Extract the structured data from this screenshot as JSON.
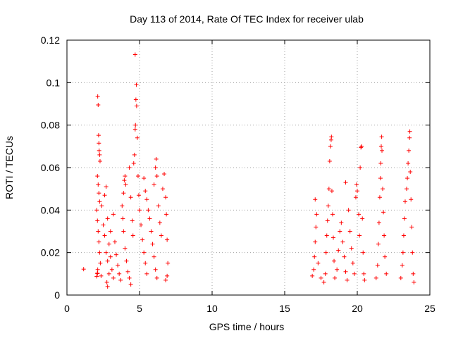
{
  "chart_data": {
    "type": "scatter",
    "title": "Day 113 of 2014, Rate Of TEC Index for receiver ulab",
    "xlabel": "GPS time / hours",
    "ylabel": "ROTI / TECUs",
    "xlim": [
      0,
      25
    ],
    "ylim": [
      0,
      0.12
    ],
    "xticks": [
      0,
      5,
      10,
      15,
      20,
      25
    ],
    "xtick_labels": [
      "0",
      "5",
      "10",
      "15",
      "20",
      "25"
    ],
    "yticks": [
      0,
      0.02,
      0.04,
      0.06,
      0.08,
      0.1,
      0.12
    ],
    "ytick_labels": [
      "0",
      "0.02",
      "0.04",
      "0.06",
      "0.08",
      "0.1",
      "0.12"
    ],
    "grid": true,
    "grid_style": "dotted",
    "marker": "+",
    "marker_color": "#ff0000",
    "series": [
      {
        "points": [
          [
            1.15,
            0.0122
          ],
          [
            2.05,
            0.0088
          ],
          [
            2.1,
            0.0101
          ],
          [
            2.1,
            0.0103
          ],
          [
            2.12,
            0.0935
          ],
          [
            2.15,
            0.0895
          ],
          [
            2.18,
            0.0752
          ],
          [
            2.2,
            0.0715
          ],
          [
            2.22,
            0.068
          ],
          [
            2.25,
            0.066
          ],
          [
            2.28,
            0.063
          ],
          [
            2.1,
            0.056
          ],
          [
            2.15,
            0.052
          ],
          [
            2.2,
            0.048
          ],
          [
            2.25,
            0.044
          ],
          [
            2.05,
            0.04
          ],
          [
            2.1,
            0.035
          ],
          [
            2.15,
            0.03
          ],
          [
            2.2,
            0.025
          ],
          [
            2.25,
            0.02
          ],
          [
            2.3,
            0.015
          ],
          [
            2.12,
            0.012
          ],
          [
            2.35,
            0.009
          ],
          [
            2.4,
            0.042
          ],
          [
            2.5,
            0.033
          ],
          [
            2.6,
            0.028
          ],
          [
            2.7,
            0.02
          ],
          [
            2.8,
            0.016
          ],
          [
            2.9,
            0.01
          ],
          [
            2.6,
            0.047
          ],
          [
            2.7,
            0.051
          ],
          [
            2.8,
            0.036
          ],
          [
            2.9,
            0.024
          ],
          [
            3.0,
            0.018
          ],
          [
            3.1,
            0.012
          ],
          [
            3.2,
            0.008
          ],
          [
            2.75,
            0.006
          ],
          [
            2.8,
            0.004
          ],
          [
            3.0,
            0.03
          ],
          [
            3.2,
            0.038
          ],
          [
            3.3,
            0.025
          ],
          [
            3.4,
            0.019
          ],
          [
            3.5,
            0.014
          ],
          [
            3.6,
            0.01
          ],
          [
            3.7,
            0.007
          ],
          [
            3.8,
            0.042
          ],
          [
            3.9,
            0.048
          ],
          [
            3.95,
            0.054
          ],
          [
            4.0,
            0.056
          ],
          [
            4.05,
            0.052
          ],
          [
            3.85,
            0.036
          ],
          [
            3.9,
            0.03
          ],
          [
            4.0,
            0.022
          ],
          [
            4.1,
            0.016
          ],
          [
            4.2,
            0.011
          ],
          [
            4.3,
            0.008
          ],
          [
            4.4,
            0.005
          ],
          [
            4.3,
            0.06
          ],
          [
            4.4,
            0.046
          ],
          [
            4.5,
            0.035
          ],
          [
            4.55,
            0.028
          ],
          [
            4.6,
            0.062
          ],
          [
            4.65,
            0.066
          ],
          [
            4.7,
            0.078
          ],
          [
            4.72,
            0.08
          ],
          [
            4.75,
            0.092
          ],
          [
            4.78,
            0.099
          ],
          [
            4.7,
            0.1132
          ],
          [
            4.8,
            0.089
          ],
          [
            4.85,
            0.074
          ],
          [
            4.9,
            0.056
          ],
          [
            4.95,
            0.047
          ],
          [
            5.0,
            0.04
          ],
          [
            5.1,
            0.033
          ],
          [
            5.2,
            0.026
          ],
          [
            5.3,
            0.02
          ],
          [
            5.4,
            0.015
          ],
          [
            5.5,
            0.01
          ],
          [
            5.3,
            0.055
          ],
          [
            5.4,
            0.049
          ],
          [
            5.5,
            0.045
          ],
          [
            5.6,
            0.04
          ],
          [
            5.7,
            0.036
          ],
          [
            5.8,
            0.03
          ],
          [
            5.9,
            0.024
          ],
          [
            6.0,
            0.018
          ],
          [
            6.1,
            0.012
          ],
          [
            6.2,
            0.008
          ],
          [
            6.0,
            0.052
          ],
          [
            6.1,
            0.06
          ],
          [
            6.15,
            0.064
          ],
          [
            6.2,
            0.056
          ],
          [
            6.3,
            0.042
          ],
          [
            6.4,
            0.034
          ],
          [
            6.5,
            0.028
          ],
          [
            6.6,
            0.05
          ],
          [
            6.7,
            0.057
          ],
          [
            6.8,
            0.046
          ],
          [
            6.85,
            0.038
          ],
          [
            6.9,
            0.026
          ],
          [
            6.95,
            0.015
          ],
          [
            6.9,
            0.009
          ],
          [
            6.8,
            0.007
          ]
        ]
      },
      {
        "points": [
          [
            16.9,
            0.009
          ],
          [
            17.0,
            0.012
          ],
          [
            17.05,
            0.018
          ],
          [
            17.1,
            0.025
          ],
          [
            17.15,
            0.032
          ],
          [
            17.2,
            0.038
          ],
          [
            17.1,
            0.045
          ],
          [
            17.3,
            0.015
          ],
          [
            17.5,
            0.008
          ],
          [
            17.7,
            0.006
          ],
          [
            17.8,
            0.01
          ],
          [
            17.85,
            0.02
          ],
          [
            17.9,
            0.028
          ],
          [
            17.95,
            0.035
          ],
          [
            18.0,
            0.042
          ],
          [
            18.05,
            0.05
          ],
          [
            18.1,
            0.063
          ],
          [
            18.15,
            0.07
          ],
          [
            18.2,
            0.073
          ],
          [
            18.22,
            0.0745
          ],
          [
            18.25,
            0.049
          ],
          [
            18.3,
            0.038
          ],
          [
            18.35,
            0.027
          ],
          [
            18.4,
            0.016
          ],
          [
            18.45,
            0.008
          ],
          [
            18.6,
            0.012
          ],
          [
            18.7,
            0.021
          ],
          [
            18.8,
            0.03
          ],
          [
            18.9,
            0.034
          ],
          [
            19.0,
            0.025
          ],
          [
            19.1,
            0.018
          ],
          [
            19.2,
            0.011
          ],
          [
            19.3,
            0.007
          ],
          [
            19.2,
            0.053
          ],
          [
            19.4,
            0.04
          ],
          [
            19.5,
            0.03
          ],
          [
            19.6,
            0.022
          ],
          [
            19.7,
            0.015
          ],
          [
            19.8,
            0.01
          ],
          [
            19.9,
            0.046
          ],
          [
            19.95,
            0.052
          ],
          [
            20.0,
            0.049
          ],
          [
            20.1,
            0.038
          ],
          [
            20.15,
            0.028
          ],
          [
            20.2,
            0.06
          ],
          [
            20.25,
            0.0695
          ],
          [
            20.3,
            0.07
          ],
          [
            20.35,
            0.036
          ],
          [
            20.4,
            0.02
          ],
          [
            20.45,
            0.01
          ],
          [
            20.5,
            0.007
          ],
          [
            21.3,
            0.008
          ],
          [
            21.4,
            0.014
          ],
          [
            21.45,
            0.024
          ],
          [
            21.5,
            0.034
          ],
          [
            21.55,
            0.046
          ],
          [
            21.6,
            0.055
          ],
          [
            21.62,
            0.062
          ],
          [
            21.65,
            0.07
          ],
          [
            21.68,
            0.0745
          ],
          [
            21.7,
            0.068
          ],
          [
            21.75,
            0.05
          ],
          [
            21.8,
            0.039
          ],
          [
            21.85,
            0.028
          ],
          [
            21.9,
            0.018
          ],
          [
            22.0,
            0.01
          ],
          [
            23.0,
            0.008
          ],
          [
            23.1,
            0.014
          ],
          [
            23.15,
            0.02
          ],
          [
            23.2,
            0.028
          ],
          [
            23.25,
            0.036
          ],
          [
            23.3,
            0.044
          ],
          [
            23.4,
            0.05
          ],
          [
            23.45,
            0.055
          ],
          [
            23.5,
            0.062
          ],
          [
            23.55,
            0.068
          ],
          [
            23.6,
            0.074
          ],
          [
            23.62,
            0.077
          ],
          [
            23.65,
            0.058
          ],
          [
            23.7,
            0.045
          ],
          [
            23.75,
            0.032
          ],
          [
            23.8,
            0.02
          ],
          [
            23.85,
            0.01
          ],
          [
            23.9,
            0.006
          ]
        ]
      }
    ]
  }
}
